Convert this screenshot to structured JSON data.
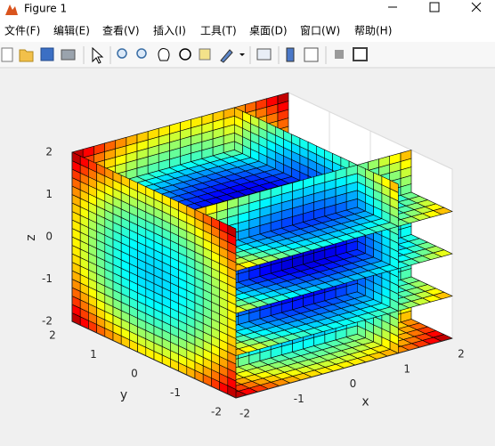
{
  "window": {
    "title": "Figure 1"
  },
  "menu": [
    "文件(F)",
    "编辑(E)",
    "查看(V)",
    "插入(I)",
    "工具(T)",
    "桌面(D)",
    "窗口(W)",
    "帮助(H)"
  ],
  "chart_data": {
    "type": "slice",
    "xlabel": "x",
    "ylabel": "y",
    "zlabel": "z",
    "xlim": [
      -2,
      2
    ],
    "ylim": [
      -2,
      2
    ],
    "zlim": [
      -2,
      2
    ],
    "xticks": [
      -2,
      -1,
      0,
      1,
      2
    ],
    "yticks": [
      -2,
      -1,
      0,
      1,
      2
    ],
    "zticks": [
      -2,
      -1,
      0,
      1,
      2
    ],
    "xslice": [
      -2,
      1
    ],
    "yslice": [
      2,
      -1
    ],
    "zslice": [
      -2,
      -1,
      0,
      1
    ],
    "colormap": "jet",
    "grid": true
  }
}
